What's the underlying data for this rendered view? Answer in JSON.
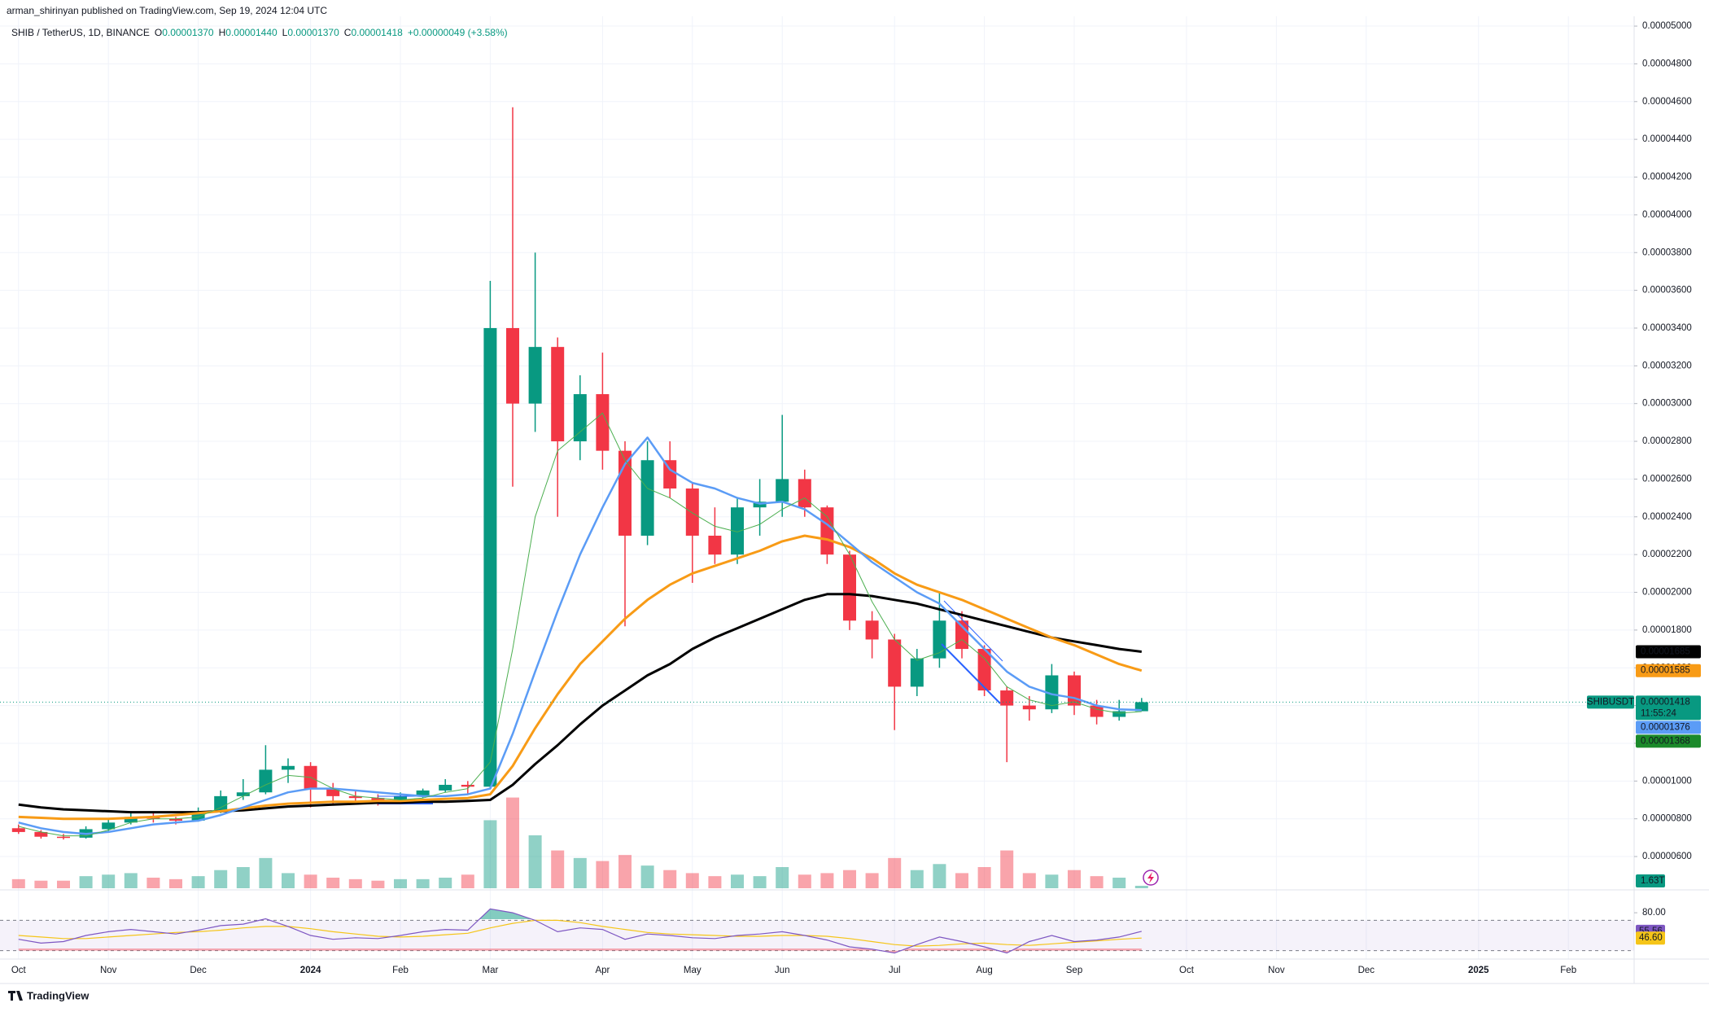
{
  "chart_data": {
    "type": "candlestick",
    "publisher_line": "arman_shirinyan published on TradingView.com, Sep 19, 2024 12:04 UTC",
    "legend": {
      "symbol": "SHIB / TetherUS, 1D, BINANCE",
      "ohlc": [
        {
          "key": "O",
          "value": "0.00001370"
        },
        {
          "key": "H",
          "value": "0.00001440"
        },
        {
          "key": "L",
          "value": "0.00001370"
        },
        {
          "key": "C",
          "value": "0.00001418"
        }
      ],
      "change": "+0.00000049 (+3.58%)"
    },
    "footer": "TradingView",
    "categories": [
      "Oct",
      null,
      null,
      null,
      "Nov",
      null,
      null,
      null,
      "Dec",
      null,
      null,
      null,
      null,
      "2024",
      null,
      null,
      null,
      "Feb",
      null,
      null,
      null,
      "Mar",
      null,
      null,
      null,
      null,
      "Apr",
      null,
      null,
      null,
      "May",
      null,
      null,
      null,
      "Jun",
      null,
      null,
      null,
      null,
      "Jul",
      null,
      null,
      null,
      "Aug",
      null,
      null,
      null,
      "Sep",
      null,
      null,
      null,
      null,
      "Oct",
      null,
      null,
      null,
      "Nov",
      null,
      null,
      null,
      "Dec",
      null,
      null,
      null,
      null,
      "2025",
      null,
      null,
      null,
      "Feb",
      null,
      null
    ],
    "up_color": "#089981",
    "down_color": "#f23645",
    "open": [
      7.5e-06,
      7.3e-06,
      7.05e-06,
      7e-06,
      7.45e-06,
      7.8e-06,
      8.1e-06,
      8e-06,
      7.9e-06,
      8.4e-06,
      9.2e-06,
      9.4e-06,
      1.06e-05,
      1.08e-05,
      9.6e-06,
      9.2e-06,
      9.1e-06,
      9e-06,
      9.2e-06,
      9.5e-06,
      9.8e-06,
      9.7e-06,
      3.4e-05,
      3e-05,
      3.3e-05,
      2.8e-05,
      3.05e-05,
      2.75e-05,
      2.3e-05,
      2.7e-05,
      2.55e-05,
      2.3e-05,
      2.2e-05,
      2.45e-05,
      2.48e-05,
      2.6e-05,
      2.45e-05,
      2.2e-05,
      1.85e-05,
      1.75e-05,
      1.5e-05,
      1.65e-05,
      1.85e-05,
      1.7e-05,
      1.48e-05,
      1.4e-05,
      1.38e-05,
      1.56e-05,
      1.4e-05,
      1.34e-05,
      1.37e-05,
      null,
      null,
      null,
      null,
      null,
      null,
      null,
      null,
      null,
      null,
      null,
      null,
      null,
      null,
      null,
      null,
      null,
      null,
      null,
      null,
      null
    ],
    "high": [
      7.7e-06,
      7.4e-06,
      7.2e-06,
      7.6e-06,
      8e-06,
      8.4e-06,
      8.3e-06,
      8.1e-06,
      8.6e-06,
      9.5e-06,
      1.01e-05,
      1.19e-05,
      1.12e-05,
      1.1e-05,
      9.9e-06,
      9.5e-06,
      9.3e-06,
      9.4e-06,
      9.6e-06,
      1.01e-05,
      1e-05,
      3.65e-05,
      4.57e-05,
      3.8e-05,
      3.35e-05,
      3.15e-05,
      3.27e-05,
      2.8e-05,
      2.8e-05,
      2.8e-05,
      2.58e-05,
      2.45e-05,
      2.5e-05,
      2.6e-05,
      2.94e-05,
      2.65e-05,
      2.46e-05,
      2.22e-05,
      1.9e-05,
      1.78e-05,
      1.7e-05,
      2e-05,
      1.9e-05,
      1.72e-05,
      1.5e-05,
      1.45e-05,
      1.62e-05,
      1.58e-05,
      1.43e-05,
      1.43e-05,
      1.44e-05,
      null,
      null,
      null,
      null,
      null,
      null,
      null,
      null,
      null,
      null,
      null,
      null,
      null,
      null,
      null,
      null,
      null,
      null,
      null,
      null,
      null
    ],
    "low": [
      7.2e-06,
      6.95e-06,
      6.9e-06,
      6.95e-06,
      7.35e-06,
      7.7e-06,
      7.8e-06,
      7.7e-06,
      7.85e-06,
      8.3e-06,
      9e-06,
      9.3e-06,
      9.9e-06,
      8.6e-06,
      8.7e-06,
      8.9e-06,
      8.7e-06,
      8.8e-06,
      9.1e-06,
      9.4e-06,
      9.3e-06,
      9.6e-06,
      2.56e-05,
      2.85e-05,
      2.4e-05,
      2.7e-05,
      2.65e-05,
      1.82e-05,
      2.25e-05,
      2.5e-05,
      2.05e-05,
      2.15e-05,
      2.15e-05,
      2.3e-05,
      2.4e-05,
      2.4e-05,
      2.15e-05,
      1.8e-05,
      1.65e-05,
      1.27e-05,
      1.45e-05,
      1.6e-05,
      1.65e-05,
      1.45e-05,
      1.1e-05,
      1.32e-05,
      1.36e-05,
      1.35e-05,
      1.3e-05,
      1.32e-05,
      1.37e-05,
      null,
      null,
      null,
      null,
      null,
      null,
      null,
      null,
      null,
      null,
      null,
      null,
      null,
      null,
      null,
      null,
      null,
      null,
      null,
      null,
      null
    ],
    "close": [
      7.3e-06,
      7.05e-06,
      7e-06,
      7.45e-06,
      7.8e-06,
      8.1e-06,
      8e-06,
      7.9e-06,
      8.4e-06,
      9.2e-06,
      9.4e-06,
      1.06e-05,
      1.08e-05,
      9.6e-06,
      9.2e-06,
      9.1e-06,
      9e-06,
      9.2e-06,
      9.5e-06,
      9.8e-06,
      9.7e-06,
      3.4e-05,
      3e-05,
      3.3e-05,
      2.8e-05,
      3.05e-05,
      2.75e-05,
      2.3e-05,
      2.7e-05,
      2.55e-05,
      2.3e-05,
      2.2e-05,
      2.45e-05,
      2.48e-05,
      2.6e-05,
      2.45e-05,
      2.2e-05,
      1.85e-05,
      1.75e-05,
      1.5e-05,
      1.65e-05,
      1.85e-05,
      1.7e-05,
      1.48e-05,
      1.4e-05,
      1.38e-05,
      1.56e-05,
      1.4e-05,
      1.34e-05,
      1.37e-05,
      1.418e-05,
      null,
      null,
      null,
      null,
      null,
      null,
      null,
      null,
      null,
      null,
      null,
      null,
      null,
      null,
      null,
      null,
      null,
      null,
      null,
      null,
      null
    ],
    "moving_averages": [
      {
        "color": "#000000",
        "width": 3,
        "values": [
          8.75e-06,
          8.6e-06,
          8.5e-06,
          8.45e-06,
          8.4e-06,
          8.35e-06,
          8.35e-06,
          8.35e-06,
          8.35e-06,
          8.4e-06,
          8.45e-06,
          8.55e-06,
          8.65e-06,
          8.7e-06,
          8.75e-06,
          8.8e-06,
          8.85e-06,
          8.85e-06,
          8.9e-06,
          8.9e-06,
          8.95e-06,
          9e-06,
          9.8e-06,
          1.09e-05,
          1.19e-05,
          1.3e-05,
          1.4e-05,
          1.48e-05,
          1.56e-05,
          1.62e-05,
          1.7e-05,
          1.76e-05,
          1.81e-05,
          1.86e-05,
          1.91e-05,
          1.96e-05,
          1.99e-05,
          1.99e-05,
          1.98e-05,
          1.96e-05,
          1.94e-05,
          1.91e-05,
          1.88e-05,
          1.85e-05,
          1.82e-05,
          1.79e-05,
          1.76e-05,
          1.74e-05,
          1.72e-05,
          1.7e-05,
          1.685e-05,
          null,
          null,
          null,
          null,
          null,
          null,
          null,
          null,
          null,
          null,
          null,
          null,
          null,
          null,
          null,
          null,
          null,
          null,
          null,
          null,
          null
        ]
      },
      {
        "color": "#f89b16",
        "width": 3,
        "values": [
          8.1e-06,
          8.05e-06,
          8e-06,
          8e-06,
          8e-06,
          8.05e-06,
          8.1e-06,
          8.2e-06,
          8.3e-06,
          8.4e-06,
          8.55e-06,
          8.7e-06,
          8.8e-06,
          8.85e-06,
          8.9e-06,
          8.9e-06,
          8.95e-06,
          8.95e-06,
          9e-06,
          9.05e-06,
          9.1e-06,
          9.3e-06,
          1.08e-05,
          1.28e-05,
          1.46e-05,
          1.62e-05,
          1.74e-05,
          1.86e-05,
          1.96e-05,
          2.04e-05,
          2.1e-05,
          2.14e-05,
          2.18e-05,
          2.22e-05,
          2.27e-05,
          2.3e-05,
          2.28e-05,
          2.24e-05,
          2.18e-05,
          2.1e-05,
          2.04e-05,
          2e-05,
          1.96e-05,
          1.91e-05,
          1.86e-05,
          1.81e-05,
          1.76e-05,
          1.72e-05,
          1.67e-05,
          1.62e-05,
          1.585e-05,
          null,
          null,
          null,
          null,
          null,
          null,
          null,
          null,
          null,
          null,
          null,
          null,
          null,
          null,
          null,
          null,
          null,
          null,
          null,
          null,
          null
        ]
      },
      {
        "color": "#5b9cf6",
        "width": 2.5,
        "values": [
          7.8e-06,
          7.5e-06,
          7.3e-06,
          7.2e-06,
          7.3e-06,
          7.5e-06,
          7.7e-06,
          7.8e-06,
          7.9e-06,
          8.2e-06,
          8.6e-06,
          9e-06,
          9.4e-06,
          9.6e-06,
          9.6e-06,
          9.5e-06,
          9.4e-06,
          9.3e-06,
          9.2e-06,
          9.2e-06,
          9.3e-06,
          9.6e-06,
          1.25e-05,
          1.58e-05,
          1.9e-05,
          2.2e-05,
          2.45e-05,
          2.68e-05,
          2.82e-05,
          2.65e-05,
          2.58e-05,
          2.55e-05,
          2.5e-05,
          2.47e-05,
          2.48e-05,
          2.44e-05,
          2.36e-05,
          2.26e-05,
          2.16e-05,
          2.08e-05,
          2e-05,
          1.94e-05,
          1.82e-05,
          1.7e-05,
          1.58e-05,
          1.5e-05,
          1.46e-05,
          1.44e-05,
          1.4e-05,
          1.38e-05,
          1.376e-05,
          null,
          null,
          null,
          null,
          null,
          null,
          null,
          null,
          null,
          null,
          null,
          null,
          null,
          null,
          null,
          null,
          null,
          null,
          null,
          null,
          null
        ]
      },
      {
        "color": "#4caf50",
        "width": 1,
        "values": [
          7.6e-06,
          7.3e-06,
          7.1e-06,
          7.1e-06,
          7.4e-06,
          7.8e-06,
          8e-06,
          8e-06,
          8.1e-06,
          8.6e-06,
          9.2e-06,
          9.8e-06,
          1.03e-05,
          1.02e-05,
          9.6e-06,
          9.2e-06,
          9.1e-06,
          9e-06,
          9.1e-06,
          9.4e-06,
          9.6e-06,
          1.1e-05,
          1.7e-05,
          2.4e-05,
          2.75e-05,
          2.85e-05,
          2.95e-05,
          2.7e-05,
          2.55e-05,
          2.5e-05,
          2.42e-05,
          2.35e-05,
          2.32e-05,
          2.36e-05,
          2.44e-05,
          2.5e-05,
          2.4e-05,
          2.2e-05,
          1.95e-05,
          1.75e-05,
          1.64e-05,
          1.68e-05,
          1.75e-05,
          1.65e-05,
          1.5e-05,
          1.43e-05,
          1.4e-05,
          1.42e-05,
          1.38e-05,
          1.36e-05,
          1.368e-05,
          null,
          null,
          null,
          null,
          null,
          null,
          null,
          null,
          null,
          null,
          null,
          null,
          null,
          null,
          null,
          null,
          null,
          null,
          null,
          null,
          null
        ]
      }
    ],
    "ylim": [
      4.32e-06,
      5.052e-05
    ],
    "yticks": [
      {
        "value": 6e-06,
        "label": "0.00000600"
      },
      {
        "value": 8e-06,
        "label": "0.00000800"
      },
      {
        "value": 1e-05,
        "label": "0.00001000"
      },
      {
        "value": 1.2e-05,
        "label": "0.00001200"
      },
      {
        "value": 1.4e-05,
        "label": "0.00001400"
      },
      {
        "value": 1.6e-05,
        "label": "0.00001600"
      },
      {
        "value": 1.8e-05,
        "label": "0.00001800"
      },
      {
        "value": 2e-05,
        "label": "0.00002000"
      },
      {
        "value": 2.2e-05,
        "label": "0.00002200"
      },
      {
        "value": 2.4e-05,
        "label": "0.00002400"
      },
      {
        "value": 2.6e-05,
        "label": "0.00002600"
      },
      {
        "value": 2.8e-05,
        "label": "0.00002800"
      },
      {
        "value": 3e-05,
        "label": "0.00003000"
      },
      {
        "value": 3.2e-05,
        "label": "0.00003200"
      },
      {
        "value": 3.4e-05,
        "label": "0.00003400"
      },
      {
        "value": 3.6e-05,
        "label": "0.00003600"
      },
      {
        "value": 3.8e-05,
        "label": "0.00003800"
      },
      {
        "value": 4e-05,
        "label": "0.00004000"
      },
      {
        "value": 4.2e-05,
        "label": "0.00004200"
      },
      {
        "value": 4.4e-05,
        "label": "0.00004400"
      },
      {
        "value": 4.6e-05,
        "label": "0.00004600"
      },
      {
        "value": 4.8e-05,
        "label": "0.00004800"
      },
      {
        "value": 5e-05,
        "label": "0.00005000"
      }
    ],
    "grid": true,
    "price_badges": [
      {
        "value": 1.685e-05,
        "label": "0.00001685",
        "color": "#000000"
      },
      {
        "value": 1.585e-05,
        "label": "0.00001585",
        "color": "#f89b16"
      },
      {
        "value": 1.418e-05,
        "label": "0.00001418",
        "color": "#089981",
        "symbol": "SHIBUSDT",
        "countdown": "11:55:24"
      },
      {
        "value": 1.376e-05,
        "label": "0.00001376",
        "color": "#5b9cf6"
      },
      {
        "value": 1.368e-05,
        "label": "0.00001368",
        "color": "#1b8a2a"
      }
    ],
    "volume": {
      "vlim": [
        0,
        70
      ],
      "last_label": "1.63T",
      "color": "#089981",
      "values": [
        6,
        5,
        5,
        8,
        9,
        10,
        7,
        6,
        8,
        12,
        14,
        20,
        10,
        9,
        7,
        6,
        5,
        6,
        6,
        7,
        9,
        45,
        60,
        35,
        25,
        20,
        18,
        22,
        15,
        12,
        10,
        8,
        9,
        8,
        14,
        9,
        10,
        12,
        10,
        20,
        12,
        16,
        10,
        14,
        25,
        10,
        9,
        12,
        8,
        7,
        1.63,
        null,
        null,
        null,
        null,
        null,
        null,
        null,
        null,
        null,
        null,
        null,
        null,
        null,
        null,
        null,
        null,
        null,
        null,
        null,
        null,
        null
      ]
    },
    "rsi": {
      "ylim": [
        20,
        108
      ],
      "band": [
        30,
        70
      ],
      "yticks": [
        {
          "value": 80,
          "label": "80.00"
        }
      ],
      "line": {
        "color": "#7e57c2",
        "last_label": "55.56",
        "values": [
          45,
          40,
          42,
          50,
          55,
          58,
          55,
          52,
          57,
          63,
          65,
          72,
          62,
          50,
          45,
          47,
          46,
          50,
          55,
          58,
          57,
          85,
          80,
          70,
          55,
          60,
          58,
          45,
          52,
          50,
          47,
          46,
          50,
          52,
          55,
          50,
          44,
          35,
          32,
          27,
          38,
          48,
          42,
          35,
          27,
          42,
          50,
          42,
          44,
          48,
          55.56,
          null,
          null,
          null,
          null,
          null,
          null,
          null,
          null,
          null,
          null,
          null,
          null,
          null,
          null,
          null,
          null,
          null,
          null,
          null,
          null,
          null
        ]
      },
      "ma": {
        "color": "#f5c518",
        "last_label": "46.60",
        "values": [
          50,
          48,
          46,
          46,
          48,
          50,
          52,
          54,
          55,
          57,
          60,
          62,
          62,
          59,
          55,
          52,
          49,
          48,
          49,
          51,
          53,
          60,
          66,
          70,
          70,
          67,
          62,
          58,
          54,
          52,
          51,
          50,
          49,
          49,
          50,
          50,
          49,
          46,
          42,
          38,
          36,
          37,
          39,
          40,
          38,
          37,
          39,
          41,
          43,
          45,
          46.6,
          null,
          null,
          null,
          null,
          null,
          null,
          null,
          null,
          null,
          null,
          null,
          null,
          null,
          null,
          null,
          null,
          null,
          null,
          null,
          null,
          null
        ]
      }
    }
  }
}
